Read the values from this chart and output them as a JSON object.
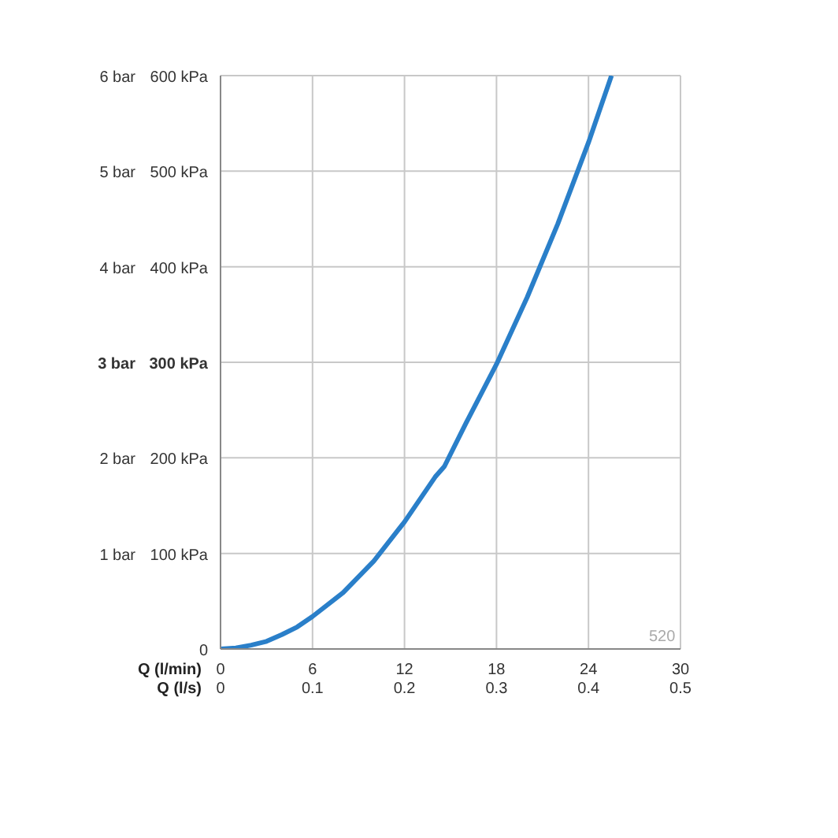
{
  "chart_data": {
    "type": "line",
    "xlabel": "Q (l/min)",
    "x2label": "Q (l/s)",
    "x": [
      0,
      1,
      2,
      3,
      4,
      5,
      6,
      8,
      10,
      12,
      14,
      14.6,
      16,
      18,
      20,
      22,
      24,
      25.5
    ],
    "series": [
      {
        "color": "#2a7fc9",
        "values": [
          0,
          1,
          4,
          8,
          15,
          23,
          34,
          59,
          92,
          133,
          180,
          191,
          236,
          298,
          368,
          445,
          530,
          600
        ]
      }
    ],
    "xlim": [
      0,
      30
    ],
    "xticks": [
      0,
      6,
      12,
      18,
      24,
      30
    ],
    "x2lim": [
      0,
      0.5
    ],
    "x2ticks": [
      0,
      0.1,
      0.2,
      0.3,
      0.4,
      0.5
    ],
    "ylim": [
      0,
      600
    ],
    "yticks": [
      0,
      {
        "value": 100,
        "label": "100 kPa"
      },
      {
        "value": 200,
        "label": "200 kPa"
      },
      {
        "value": 300,
        "label": "300 kPa"
      },
      {
        "value": 400,
        "label": "400 kPa"
      },
      {
        "value": 500,
        "label": "500 kPa"
      },
      {
        "value": 600,
        "label": "600 kPa"
      }
    ],
    "y2lim": [
      0,
      6
    ],
    "y2ticks": [
      {
        "value": 1,
        "label": "1 bar"
      },
      {
        "value": 2,
        "label": "2 bar"
      },
      {
        "value": 3,
        "label": "3 bar"
      },
      {
        "value": 4,
        "label": "4 bar"
      },
      {
        "value": 5,
        "label": "5 bar"
      },
      {
        "value": 6,
        "label": "6 bar"
      }
    ],
    "grid": true,
    "marker": "none",
    "line_style": "solid",
    "annotations": [
      "520"
    ]
  }
}
